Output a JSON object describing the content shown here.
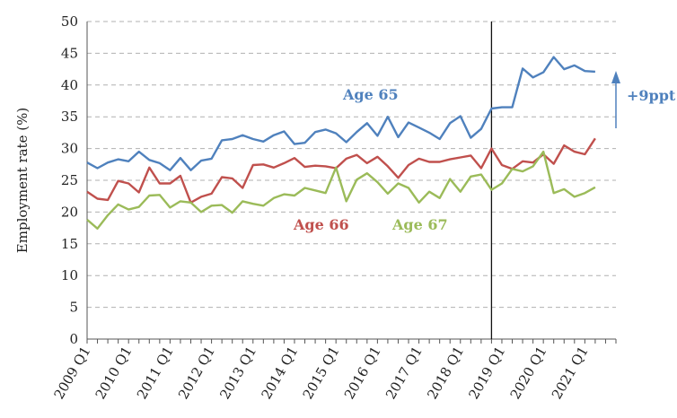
{
  "chart_data": {
    "type": "line",
    "ylabel": "Employment rate (%)",
    "xlabel": "",
    "ylim": [
      0,
      50
    ],
    "y_ticks": [
      0,
      5,
      10,
      15,
      20,
      25,
      30,
      35,
      40,
      45,
      50
    ],
    "grid": "horizontal dashed",
    "x_tick_labels": [
      "2009 Q1",
      "2010 Q1",
      "2011 Q1",
      "2012 Q1",
      "2013 Q1",
      "2014 Q1",
      "2015 Q1",
      "2016 Q1",
      "2017 Q1",
      "2018 Q1",
      "2019 Q1",
      "2020 Q1",
      "2021 Q1"
    ],
    "x_start": "2009 Q1",
    "x_end": "2021 Q4",
    "vertical_marker_after": "2018 Q4",
    "series": [
      {
        "name": "Age 65",
        "color": "#4F81BD",
        "values": [
          27.8,
          26.9,
          27.8,
          28.3,
          28.0,
          29.5,
          28.2,
          27.7,
          26.6,
          28.5,
          26.6,
          28.1,
          28.4,
          31.3,
          31.5,
          32.1,
          31.5,
          31.1,
          32.1,
          32.7,
          30.7,
          30.9,
          32.6,
          33.0,
          32.4,
          31.0,
          32.6,
          34.0,
          32.0,
          35.0,
          31.8,
          34.1,
          33.3,
          32.5,
          31.5,
          34.0,
          35.1,
          31.7,
          33.1,
          36.3,
          36.5,
          36.5,
          42.6,
          41.2,
          42.0,
          44.4,
          42.5,
          43.1,
          42.2,
          42.1
        ]
      },
      {
        "name": "Age 66",
        "color": "#C0504D",
        "values": [
          23.2,
          22.1,
          21.9,
          24.9,
          24.5,
          23.1,
          27.0,
          24.5,
          24.5,
          25.7,
          21.5,
          22.4,
          22.9,
          25.5,
          25.3,
          23.8,
          27.4,
          27.5,
          27.0,
          27.7,
          28.5,
          27.1,
          27.3,
          27.2,
          26.9,
          28.4,
          29.0,
          27.7,
          28.7,
          27.2,
          25.4,
          27.4,
          28.4,
          27.9,
          27.9,
          28.3,
          28.6,
          28.9,
          26.9,
          30.0,
          27.4,
          26.8,
          28.0,
          27.8,
          29.1,
          27.6,
          30.5,
          29.5,
          29.1,
          31.6
        ]
      },
      {
        "name": "Age 67",
        "color": "#9BBB59",
        "values": [
          18.8,
          17.4,
          19.5,
          21.2,
          20.4,
          20.8,
          22.6,
          22.7,
          20.7,
          21.7,
          21.5,
          20.0,
          21.0,
          21.1,
          19.9,
          21.7,
          21.3,
          21.0,
          22.2,
          22.8,
          22.6,
          23.8,
          23.4,
          23.0,
          27.0,
          21.7,
          25.1,
          26.1,
          24.7,
          22.9,
          24.5,
          23.8,
          21.5,
          23.2,
          22.2,
          25.2,
          23.2,
          25.6,
          25.9,
          23.5,
          24.5,
          26.8,
          26.4,
          27.2,
          29.5,
          23.0,
          23.6,
          22.4,
          23.0,
          23.9
        ]
      }
    ],
    "annotations": [
      {
        "text": "+9ppt",
        "color": "#4F81BD",
        "arrow": "up"
      }
    ]
  }
}
